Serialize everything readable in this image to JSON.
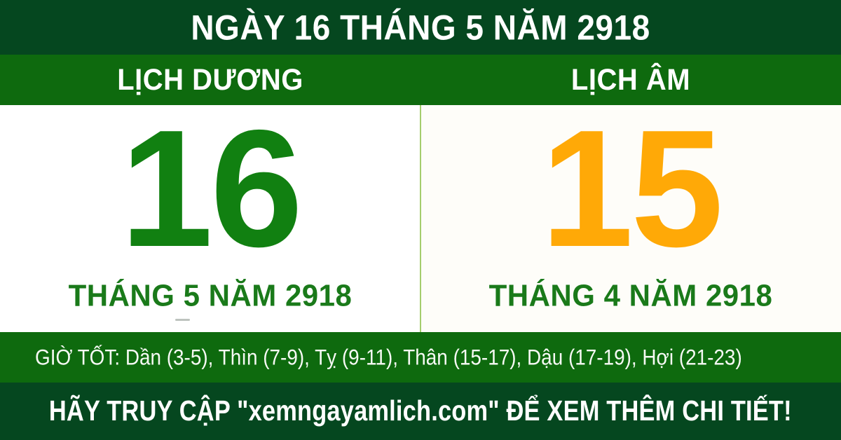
{
  "header": {
    "title": "NGÀY 16 THÁNG 5 NĂM 2918"
  },
  "calendar_bar": {
    "solar_label": "LỊCH DƯƠNG",
    "lunar_label": "LỊCH ÂM"
  },
  "solar": {
    "day": "16",
    "month_year": "THÁNG 5 NĂM 2918"
  },
  "lunar": {
    "day": "15",
    "month_year": "THÁNG 4 NĂM 2918"
  },
  "good_hours": {
    "text": "GIỜ TỐT: Dần (3-5), Thìn (7-9), Tỵ (9-11), Thân (15-17), Dậu (17-19), Hợi (21-23)"
  },
  "footer": {
    "text": "HÃY TRUY CẬP \"xemngayamlich.com\" ĐỂ XEM THÊM CHI TIẾT!"
  },
  "colors": {
    "dark_green": "#05471f",
    "bright_green": "#0e6a0e",
    "digit_green": "#118011",
    "month_green": "#1a7a1a",
    "digit_orange": "#ffa907",
    "divider_green": "#a5cd6d",
    "text_white": "#ffffff"
  }
}
